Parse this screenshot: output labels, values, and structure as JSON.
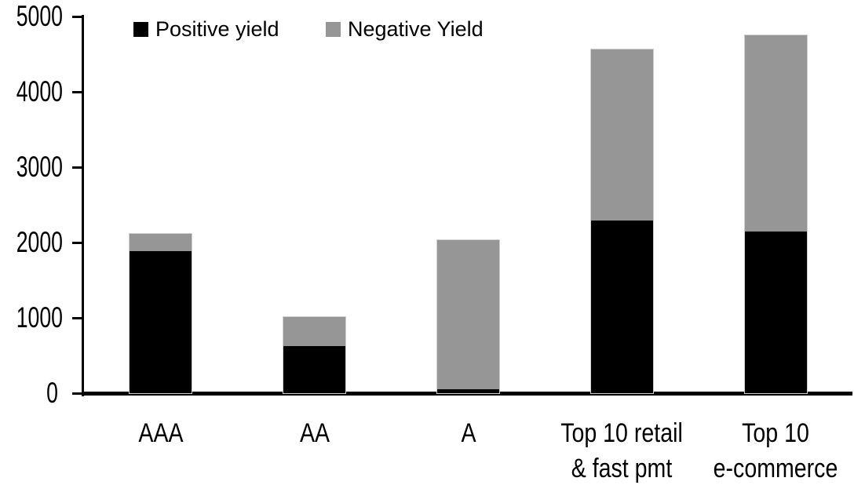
{
  "chart_data": {
    "type": "bar",
    "stacked": true,
    "title": "",
    "xlabel": "",
    "ylabel": "",
    "categories": [
      "AAA",
      "AA",
      "A",
      "Top 10 retail\n& fast pmt",
      "Top 10\ne-commerce"
    ],
    "series": [
      {
        "name": "Positive yield",
        "color": "#000000",
        "values": [
          1890,
          620,
          50,
          2290,
          2150
        ]
      },
      {
        "name": "Negative Yield",
        "color": "#969696",
        "values": [
          220,
          390,
          1980,
          2270,
          2600
        ]
      }
    ],
    "totals": [
      2110,
      1010,
      2030,
      4560,
      4750
    ],
    "ylim": [
      0,
      5000
    ],
    "yticks": [
      0,
      1000,
      2000,
      3000,
      4000,
      5000
    ],
    "legend_position": "top-left",
    "grid": false,
    "axis_color": "#000000",
    "bar_outline_color": "#cfcfcf",
    "background_color": "#ffffff"
  }
}
